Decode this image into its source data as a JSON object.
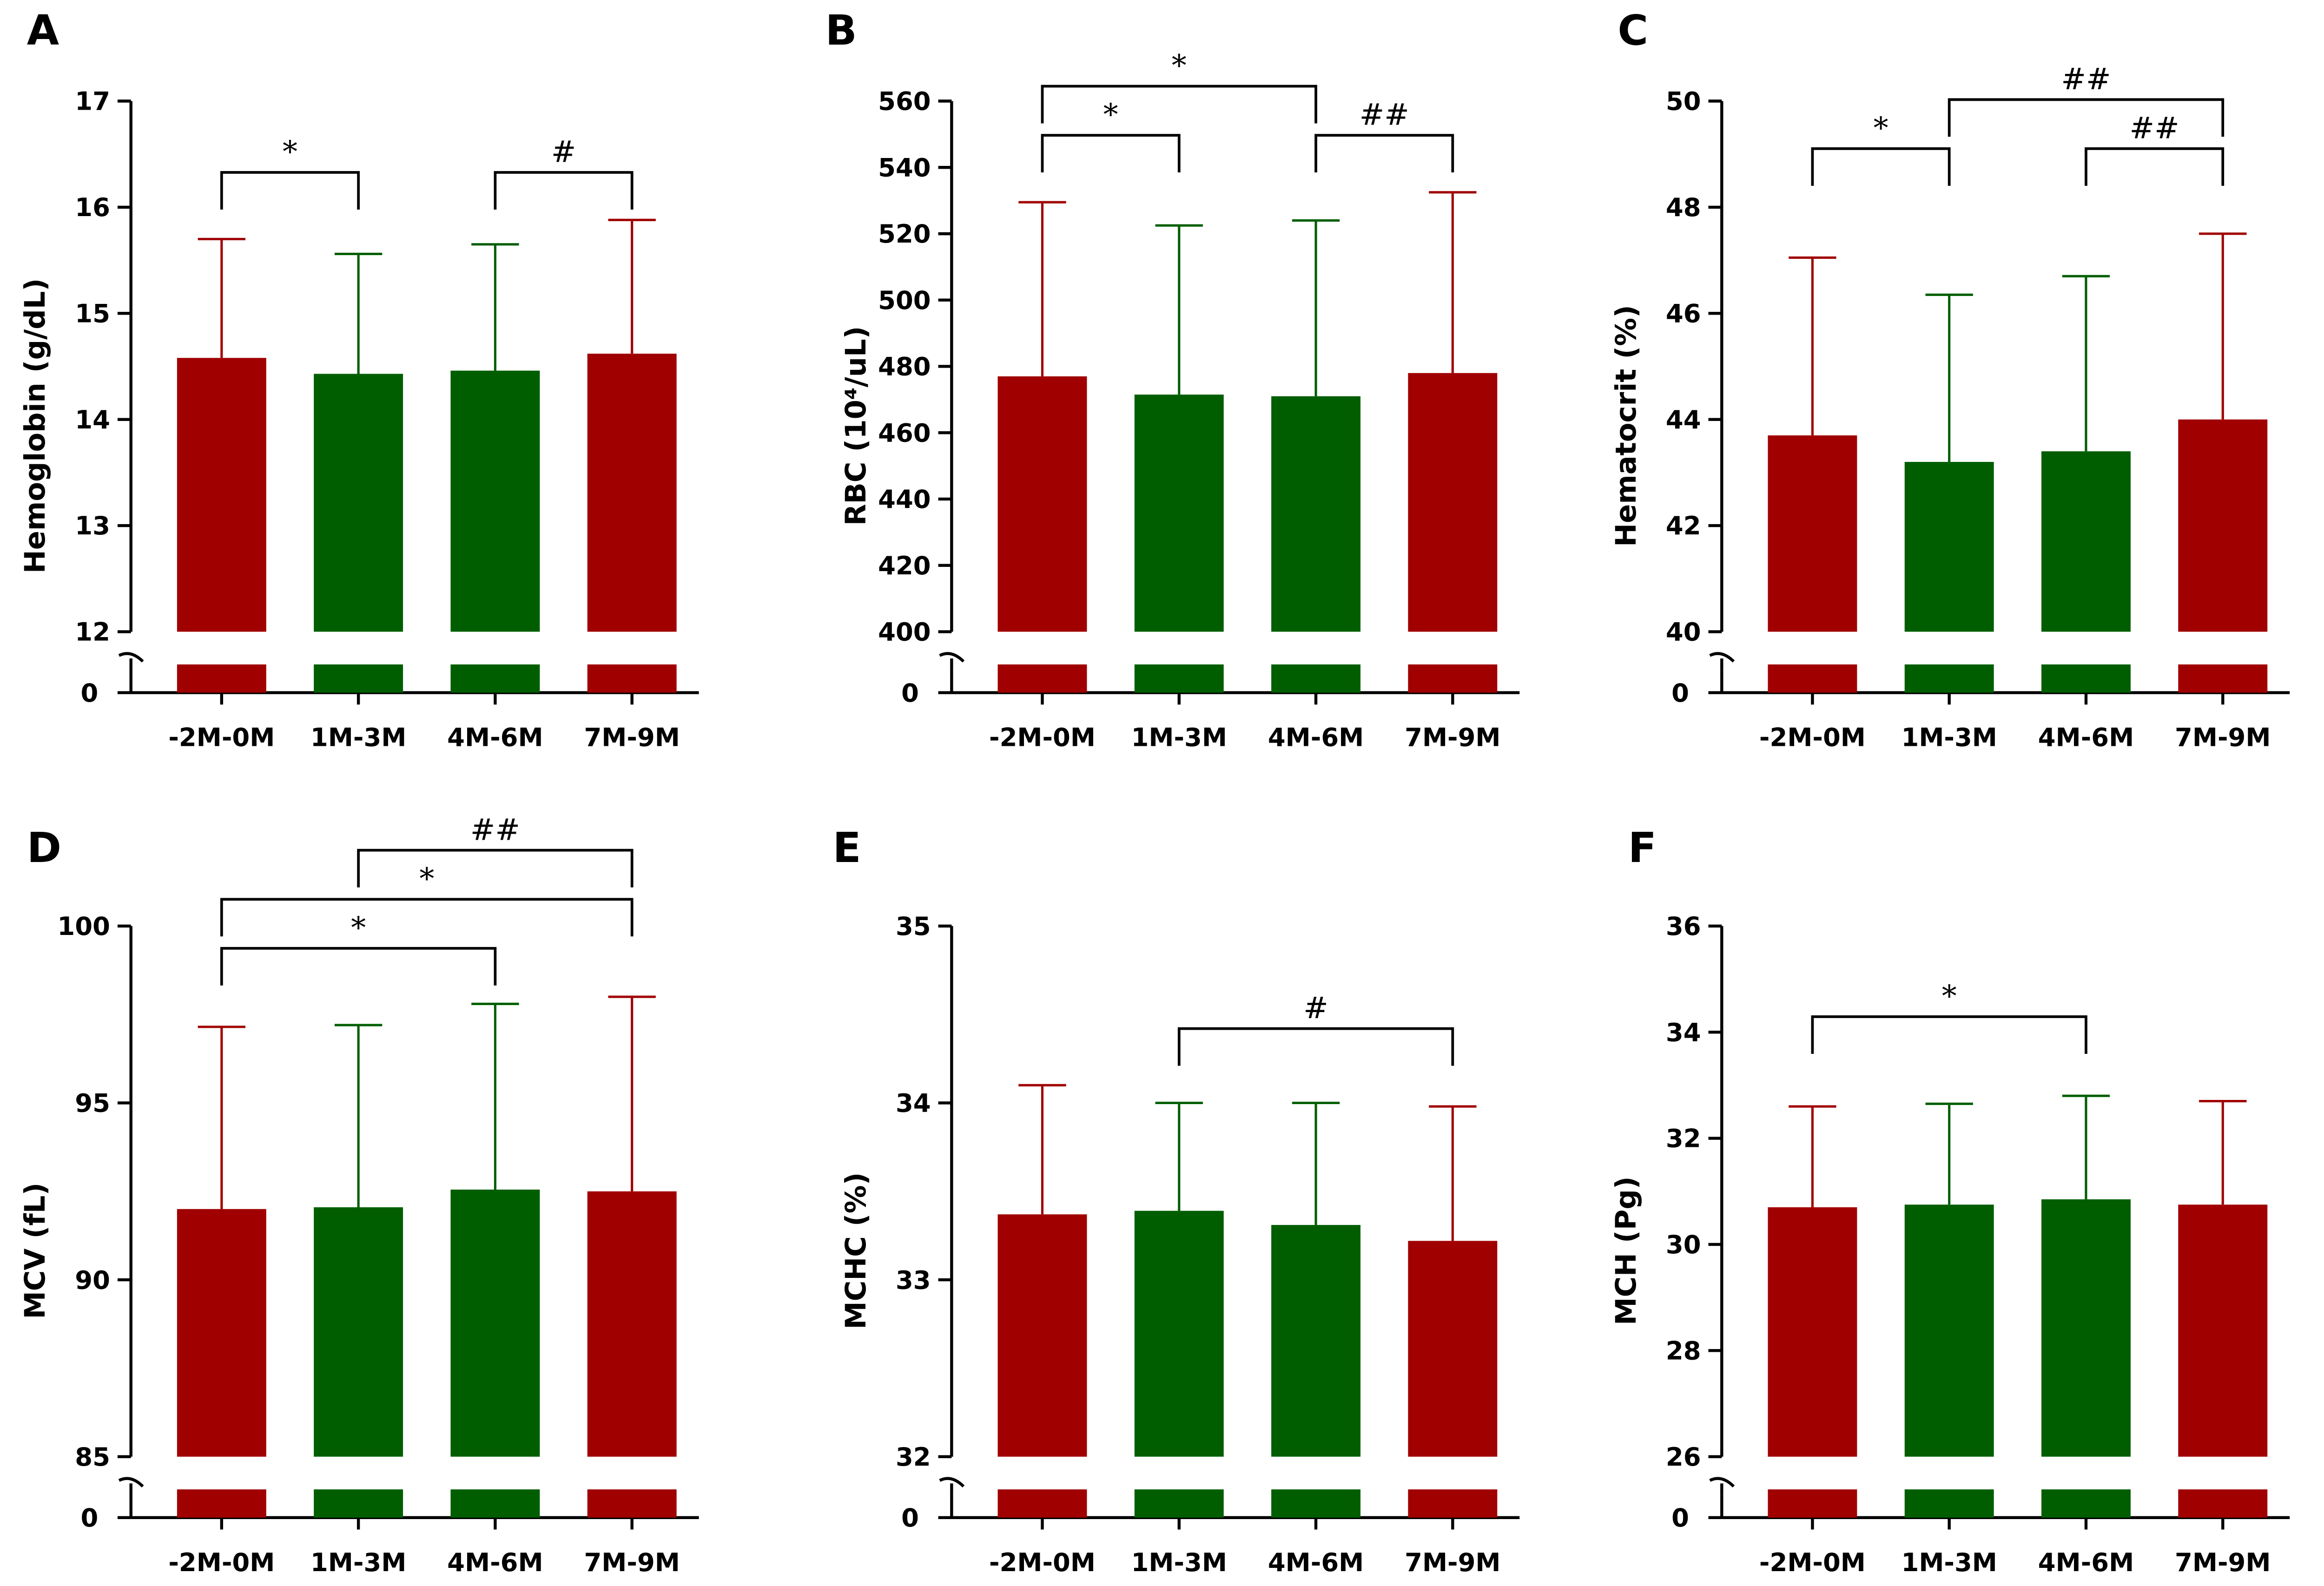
{
  "colors": {
    "red": "#a00000",
    "green": "#005e00"
  },
  "chart_data": [
    {
      "panel": "A",
      "type": "bar",
      "ylabel": "Hemoglobin (g/dL)",
      "ylim": [
        12,
        17
      ],
      "yticks": [
        "12",
        "13",
        "14",
        "15",
        "16",
        "17"
      ],
      "ytick_values": [
        12,
        13,
        14,
        15,
        16,
        17
      ],
      "zero_label": "0",
      "categories": [
        "-2M-0M",
        "1M-3M",
        "4M-6M",
        "7M-9M"
      ],
      "values": [
        14.58,
        14.43,
        14.46,
        14.62
      ],
      "error_upper": [
        15.7,
        15.56,
        15.65,
        15.88
      ],
      "bar_colors": [
        "red",
        "green",
        "green",
        "red"
      ],
      "brackets": [
        {
          "from": 0,
          "to": 1,
          "label": "*",
          "level": 0
        },
        {
          "from": 2,
          "to": 3,
          "label": "#",
          "level": 0
        }
      ]
    },
    {
      "panel": "B",
      "type": "bar",
      "ylabel": "RBC (10⁴/uL)",
      "ylim": [
        400,
        560
      ],
      "yticks": [
        "400",
        "420",
        "440",
        "460",
        "480",
        "500",
        "520",
        "540",
        "560"
      ],
      "ytick_values": [
        400,
        420,
        440,
        460,
        480,
        500,
        520,
        540,
        560
      ],
      "zero_label": "0",
      "categories": [
        "-2M-0M",
        "1M-3M",
        "4M-6M",
        "7M-9M"
      ],
      "values": [
        477,
        471.5,
        471,
        478
      ],
      "error_upper": [
        529.5,
        522.5,
        524,
        532.5
      ],
      "bar_colors": [
        "red",
        "green",
        "green",
        "red"
      ],
      "brackets": [
        {
          "from": 0,
          "to": 1,
          "label": "*",
          "level": 0
        },
        {
          "from": 0,
          "to": 2,
          "label": "*",
          "level": 1
        },
        {
          "from": 2,
          "to": 3,
          "label": "##",
          "level": 0
        }
      ]
    },
    {
      "panel": "C",
      "type": "bar",
      "ylabel": "Hematocrit (%)",
      "ylim": [
        40,
        50
      ],
      "yticks": [
        "40",
        "42",
        "44",
        "46",
        "48",
        "50"
      ],
      "ytick_values": [
        40,
        42,
        44,
        46,
        48,
        50
      ],
      "zero_label": "0",
      "categories": [
        "-2M-0M",
        "1M-3M",
        "4M-6M",
        "7M-9M"
      ],
      "values": [
        43.7,
        43.2,
        43.4,
        44.0
      ],
      "error_upper": [
        47.05,
        46.35,
        46.7,
        47.5
      ],
      "bar_colors": [
        "red",
        "green",
        "green",
        "red"
      ],
      "brackets": [
        {
          "from": 0,
          "to": 1,
          "label": "*",
          "level": 0
        },
        {
          "from": 2,
          "to": 3,
          "label": "##",
          "level": 0
        },
        {
          "from": 1,
          "to": 3,
          "label": "##",
          "level": 1
        }
      ]
    },
    {
      "panel": "D",
      "type": "bar",
      "ylabel": "MCV (fL)",
      "ylim": [
        85,
        100
      ],
      "yticks": [
        "85",
        "90",
        "95",
        "100"
      ],
      "ytick_values": [
        85,
        90,
        95,
        100
      ],
      "zero_label": "0",
      "categories": [
        "-2M-0M",
        "1M-3M",
        "4M-6M",
        "7M-9M"
      ],
      "values": [
        92.0,
        92.05,
        92.55,
        92.5
      ],
      "error_upper": [
        97.15,
        97.2,
        97.8,
        98.0
      ],
      "bar_colors": [
        "red",
        "green",
        "green",
        "red"
      ],
      "brackets": [
        {
          "from": 0,
          "to": 2,
          "label": "*",
          "level": 0
        },
        {
          "from": 0,
          "to": 3,
          "label": "*",
          "level": 1
        },
        {
          "from": 1,
          "to": 3,
          "label": "##",
          "level": 2
        }
      ]
    },
    {
      "panel": "E",
      "type": "bar",
      "ylabel": "MCHC (%)",
      "ylim": [
        32,
        35
      ],
      "yticks": [
        "32",
        "33",
        "34",
        "35"
      ],
      "ytick_values": [
        32,
        33,
        34,
        35
      ],
      "zero_label": "0",
      "categories": [
        "-2M-0M",
        "1M-3M",
        "4M-6M",
        "7M-9M"
      ],
      "values": [
        33.37,
        33.39,
        33.31,
        33.22
      ],
      "error_upper": [
        34.1,
        34.0,
        34.0,
        33.98
      ],
      "bar_colors": [
        "red",
        "green",
        "green",
        "red"
      ],
      "brackets": [
        {
          "from": 1,
          "to": 3,
          "label": "#",
          "level": 0
        }
      ]
    },
    {
      "panel": "F",
      "type": "bar",
      "ylabel": "MCH (Pg)",
      "ylim": [
        26,
        36
      ],
      "yticks": [
        "26",
        "28",
        "30",
        "32",
        "34",
        "36"
      ],
      "ytick_values": [
        26,
        28,
        30,
        32,
        34,
        36
      ],
      "zero_label": "0",
      "categories": [
        "-2M-0M",
        "1M-3M",
        "4M-6M",
        "7M-9M"
      ],
      "values": [
        30.7,
        30.75,
        30.85,
        30.75
      ],
      "error_upper": [
        32.6,
        32.65,
        32.8,
        32.7
      ],
      "bar_colors": [
        "red",
        "green",
        "green",
        "red"
      ],
      "brackets": [
        {
          "from": 0,
          "to": 2,
          "label": "*",
          "level": 0
        }
      ]
    }
  ]
}
